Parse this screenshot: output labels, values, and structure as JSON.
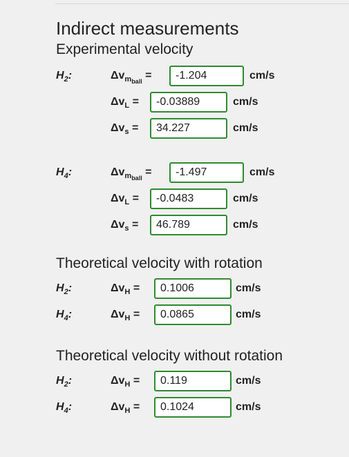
{
  "title": "Indirect measurements",
  "experimental": {
    "title": "Experimental velocity",
    "groups": [
      {
        "height": "H",
        "height_sub": "2",
        "rows": [
          {
            "symbol": "Δv",
            "sub": "m",
            "subsub": "ball",
            "eq": "=",
            "value": "-1.204",
            "unit": "cm/s"
          },
          {
            "symbol": "Δv",
            "sub": "L",
            "eq": "=",
            "value": "-0.03889",
            "unit": "cm/s"
          },
          {
            "symbol": "Δv",
            "sub": "s",
            "eq": "=",
            "value": "34.227",
            "unit": "cm/s"
          }
        ]
      },
      {
        "height": "H",
        "height_sub": "4",
        "rows": [
          {
            "symbol": "Δv",
            "sub": "m",
            "subsub": "ball",
            "eq": "=",
            "value": "-1.497",
            "unit": "cm/s"
          },
          {
            "symbol": "Δv",
            "sub": "L",
            "eq": "=",
            "value": "-0.0483",
            "unit": "cm/s"
          },
          {
            "symbol": "Δv",
            "sub": "s",
            "eq": "=",
            "value": "46.789",
            "unit": "cm/s"
          }
        ]
      }
    ]
  },
  "with_rotation": {
    "title": "Theoretical velocity with rotation",
    "rows": [
      {
        "height": "H",
        "height_sub": "2",
        "symbol": "Δv",
        "sub": "H",
        "eq": "=",
        "value": "0.1006",
        "unit": "cm/s"
      },
      {
        "height": "H",
        "height_sub": "4",
        "symbol": "Δv",
        "sub": "H",
        "eq": "=",
        "value": "0.0865",
        "unit": "cm/s"
      }
    ]
  },
  "without_rotation": {
    "title": "Theoretical velocity without rotation",
    "rows": [
      {
        "height": "H",
        "height_sub": "2",
        "symbol": "Δv",
        "sub": "H",
        "eq": "=",
        "value": "0.119",
        "unit": "cm/s"
      },
      {
        "height": "H",
        "height_sub": "4",
        "symbol": "Δv",
        "sub": "H",
        "eq": "=",
        "value": "0.1024",
        "unit": "cm/s"
      }
    ]
  },
  "colors": {
    "field_border": "#2e8b2e",
    "background": "#f0f0f0"
  }
}
